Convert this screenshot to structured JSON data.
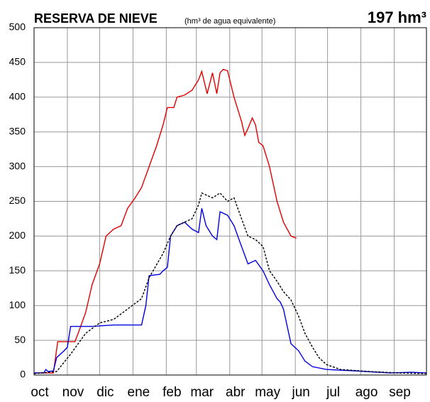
{
  "chart_data": {
    "type": "line",
    "title": "RESERVA DE NIEVE",
    "subtitle": "(hm³ de agua equivalente)",
    "annotation": "197 hm³",
    "xlim": [
      0,
      365
    ],
    "xticks": [
      {
        "value": 0,
        "label": "oct"
      },
      {
        "value": 31,
        "label": "nov"
      },
      {
        "value": 61,
        "label": "dic"
      },
      {
        "value": 92,
        "label": "ene"
      },
      {
        "value": 123,
        "label": "feb"
      },
      {
        "value": 151,
        "label": "mar"
      },
      {
        "value": 182,
        "label": "abr"
      },
      {
        "value": 212,
        "label": "may"
      },
      {
        "value": 243,
        "label": "jun"
      },
      {
        "value": 273,
        "label": "jul"
      },
      {
        "value": 304,
        "label": "ago"
      },
      {
        "value": 335,
        "label": "sep"
      }
    ],
    "ylim": [
      0,
      500
    ],
    "yticks": [
      0,
      50,
      100,
      150,
      200,
      250,
      300,
      350,
      400,
      450,
      500
    ],
    "grid": true,
    "series": [
      {
        "color": "#e00000",
        "style": "solid",
        "x": [
          0,
          18,
          22,
          38,
          41,
          48,
          54,
          61,
          67,
          74,
          81,
          87,
          94,
          100,
          107,
          114,
          120,
          124,
          130,
          133,
          140,
          147,
          153,
          156,
          161,
          166,
          170,
          173,
          176,
          180,
          186,
          193,
          196,
          199,
          203,
          206,
          209,
          213,
          219,
          226,
          232,
          239,
          244
        ],
        "values": [
          3,
          3,
          48,
          48,
          60,
          90,
          130,
          160,
          200,
          210,
          215,
          240,
          255,
          270,
          300,
          330,
          360,
          385,
          385,
          400,
          403,
          410,
          425,
          437,
          405,
          435,
          405,
          435,
          440,
          438,
          400,
          365,
          345,
          355,
          370,
          360,
          335,
          330,
          300,
          250,
          220,
          200,
          197
        ]
      },
      {
        "color": "#0000e0",
        "style": "solid",
        "x": [
          0,
          9,
          11,
          13,
          18,
          21,
          28,
          31,
          34,
          54,
          74,
          100,
          104,
          107,
          117,
          120,
          124,
          127,
          133,
          140,
          147,
          153,
          156,
          160,
          166,
          170,
          173,
          180,
          186,
          193,
          199,
          206,
          213,
          219,
          226,
          229,
          232,
          239,
          246,
          252,
          259,
          272,
          298,
          331,
          351,
          365
        ],
        "values": [
          3,
          3,
          8,
          5,
          6,
          25,
          35,
          40,
          70,
          70,
          72,
          72,
          100,
          143,
          145,
          150,
          155,
          200,
          215,
          220,
          210,
          205,
          240,
          215,
          200,
          195,
          235,
          230,
          215,
          185,
          160,
          165,
          150,
          130,
          110,
          105,
          95,
          45,
          35,
          20,
          12,
          8,
          6,
          3,
          4,
          3
        ]
      },
      {
        "color": "#000000",
        "style": "dashed",
        "x": [
          0,
          21,
          34,
          48,
          61,
          74,
          87,
          100,
          107,
          120,
          127,
          133,
          147,
          153,
          156,
          166,
          173,
          180,
          186,
          193,
          199,
          206,
          213,
          219,
          226,
          232,
          239,
          246,
          252,
          259,
          265,
          272,
          285,
          312,
          338,
          365
        ],
        "values": [
          2,
          5,
          30,
          60,
          75,
          80,
          95,
          110,
          140,
          175,
          200,
          215,
          225,
          245,
          262,
          255,
          262,
          250,
          255,
          225,
          200,
          195,
          185,
          150,
          135,
          120,
          108,
          85,
          60,
          40,
          25,
          15,
          8,
          5,
          3,
          2
        ]
      }
    ]
  }
}
